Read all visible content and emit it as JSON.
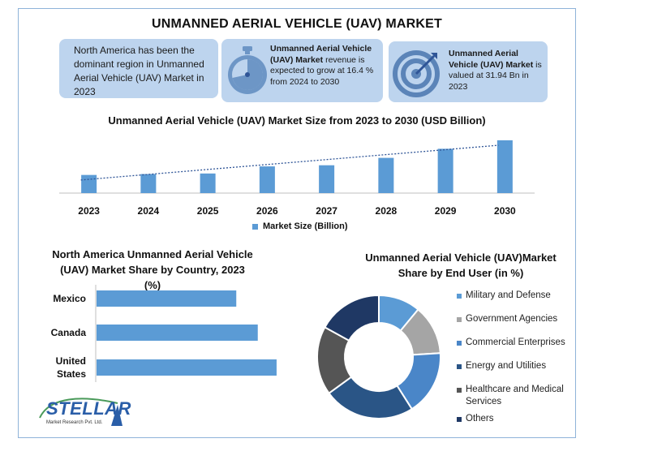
{
  "title": "UNMANNED AERIAL VEHICLE (UAV) MARKET",
  "info_boxes": [
    {
      "text": "North America has been the dominant region in Unmanned Aerial Vehicle (UAV) Market in 2023",
      "icon": "globe"
    },
    {
      "bold": "Unmanned Aerial Vehicle (UAV) Market",
      "text": " revenue is expected to grow at 16.4 % from 2024 to 2030",
      "icon": "stopwatch-icon"
    },
    {
      "bold": "Unmanned Aerial Vehicle (UAV) Market",
      "text": " is valued at 31.94 Bn in 2023",
      "icon": "target-icon"
    }
  ],
  "colors": {
    "bar": "#5b9bd5",
    "box": "#bdd4ee",
    "trend": "#2f5597"
  },
  "chart_data": [
    {
      "type": "bar",
      "title": "Unmanned Aerial Vehicle (UAV) Market Size from 2023 to 2030 (USD Billion)",
      "categories": [
        "2023",
        "2024",
        "2025",
        "2026",
        "2027",
        "2028",
        "2029",
        "2030"
      ],
      "series": [
        {
          "name": "Market Size (Billion)",
          "values": [
            31.94,
            33.5,
            34.5,
            47,
            49,
            62,
            78,
            93
          ]
        }
      ],
      "ylim": [
        0,
        100
      ],
      "trendline": true,
      "legend": "bottom",
      "grid": false
    },
    {
      "type": "bar",
      "orientation": "horizontal",
      "title": "North America Unmanned Aerial Vehicle (UAV) Market  Share by Country, 2023 (%)",
      "categories": [
        "Mexico",
        "Canada",
        "United States"
      ],
      "values": [
        26,
        30,
        33.5
      ],
      "xlim": [
        0,
        40
      ],
      "grid": false
    },
    {
      "type": "pie",
      "donut": true,
      "title": "Unmanned Aerial Vehicle (UAV)Market Share by End User (in %)",
      "labels": [
        "Military and Defense",
        "Government Agencies",
        "Commercial Enterprises",
        "Energy and Utilities",
        "Healthcare and Medical Services",
        "Others"
      ],
      "values": [
        11,
        13,
        17,
        24,
        18,
        17
      ],
      "colors": [
        "#5b9bd5",
        "#a5a5a5",
        "#4a86c8",
        "#2a5586",
        "#555555",
        "#1f3864"
      ],
      "legend": "right"
    }
  ],
  "logo": {
    "text": "STELLAR",
    "sub": "Market Research Pvt. Ltd."
  }
}
